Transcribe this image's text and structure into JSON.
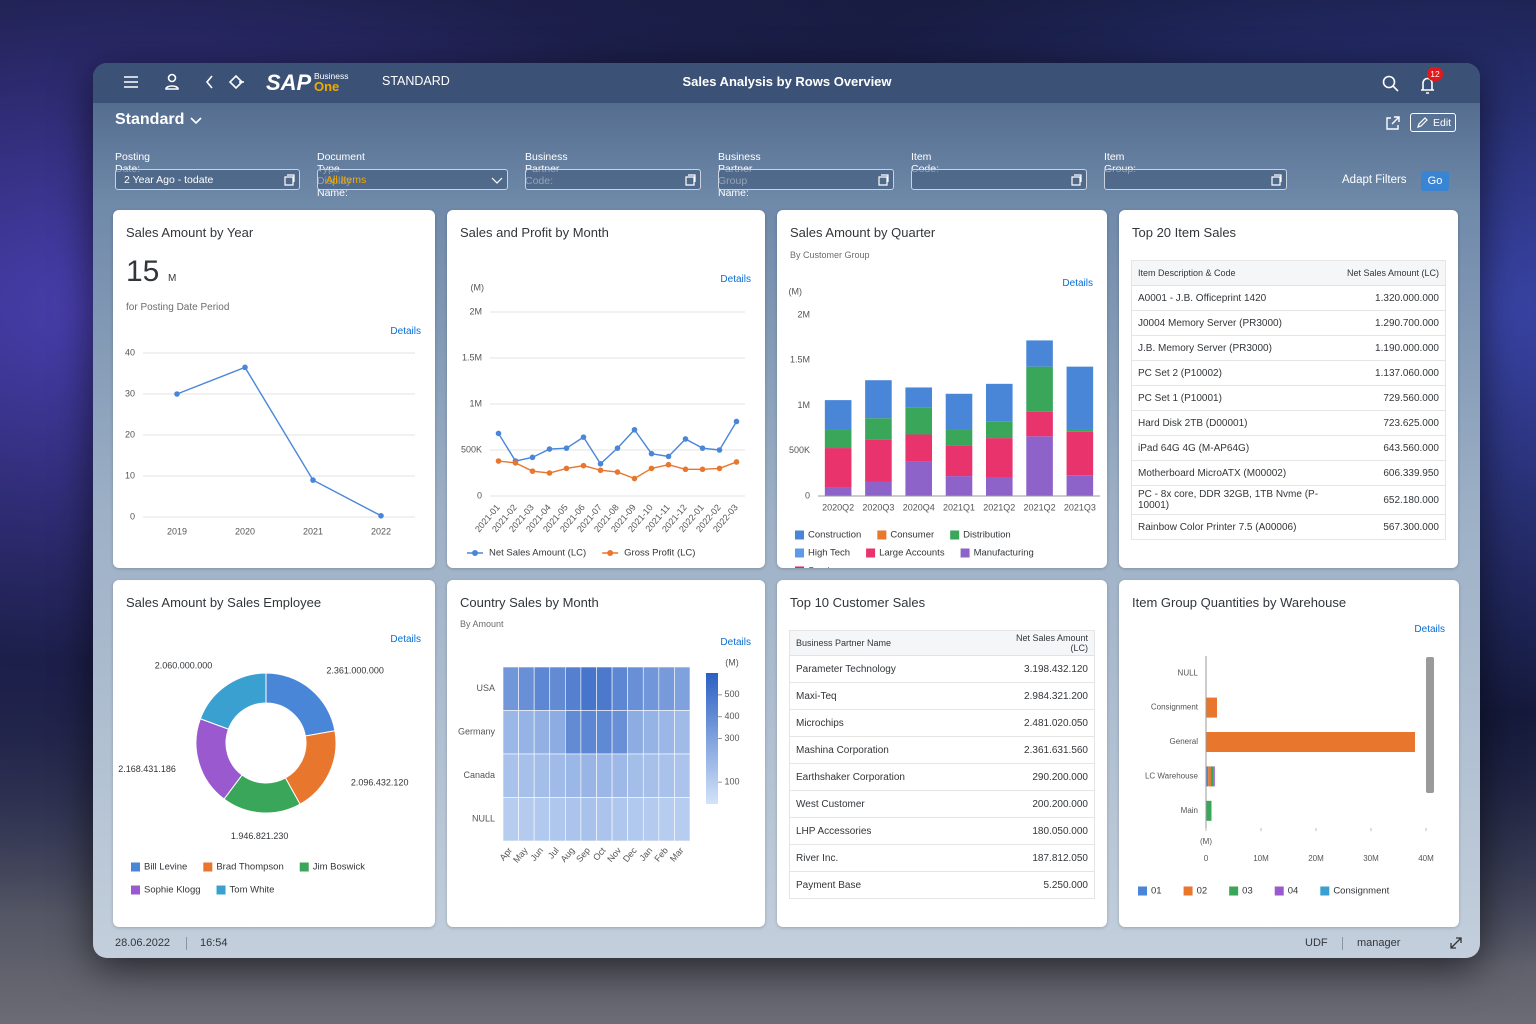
{
  "header": {
    "logo": "SAP",
    "logo_sup": "Business",
    "logo_sub": "One",
    "space": "STANDARD",
    "title": "Sales Analysis by Rows Overview",
    "notifications": 12
  },
  "toolbar": {
    "view": "Standard",
    "edit": "Edit"
  },
  "filters": {
    "fields": [
      {
        "label": "Posting Date:",
        "value": "2 Year Ago - todate"
      },
      {
        "label": "Document Type Display Name:",
        "value": "All Items"
      },
      {
        "label": "Business Partner Code:"
      },
      {
        "label": "Business Partner Group Name:"
      },
      {
        "label": "Item Code:"
      },
      {
        "label": "Item Group:"
      }
    ],
    "adapt": "Adapt Filters",
    "go": "Go"
  },
  "cards": [
    {
      "title": "Sales Amount by Year",
      "kpi": 15,
      "kpi_unit": "M",
      "kpi_caption": "for Posting Date Period",
      "details": "Details",
      "chart": {
        "type": "line",
        "categories": [
          "2019",
          "2020",
          "2021",
          "2022"
        ],
        "values": [
          30,
          36.5,
          9,
          0.3
        ],
        "color": "#4a86d8",
        "ylim": [
          0,
          40
        ],
        "yticks": [
          0,
          10,
          20,
          30,
          40
        ],
        "grid": true
      }
    },
    {
      "title": "Sales and Profit by Month",
      "details": "Details",
      "chart": {
        "type": "line",
        "unit": "(M)",
        "categories": [
          "2021-01",
          "2021-02",
          "2021-03",
          "2021-04",
          "2021-05",
          "2021-06",
          "2021-07",
          "2021-08",
          "2021-09",
          "2021-10",
          "2021-11",
          "2021-12",
          "2022-01",
          "2022-02",
          "2022-03"
        ],
        "series": [
          {
            "name": "Net Sales Amount (LC)",
            "color": "#4a86d8",
            "values": [
              680000,
              380000,
              420000,
              510000,
              520000,
              640000,
              350000,
              520000,
              720000,
              460000,
              430000,
              620000,
              520000,
              500000,
              810000
            ]
          },
          {
            "name": "Gross Profit (LC)",
            "color": "#e8762d",
            "values": [
              380000,
              360000,
              270000,
              250000,
              300000,
              330000,
              280000,
              260000,
              190000,
              300000,
              340000,
              290000,
              290000,
              300000,
              370000
            ]
          }
        ],
        "ylim": [
          0,
          2000000
        ],
        "yticks": [
          0,
          {
            "value": 500000,
            "label": "500K"
          },
          {
            "value": 1000000,
            "label": "1M"
          },
          {
            "value": 1500000,
            "label": "1.5M"
          },
          {
            "value": 2000000,
            "label": "2M"
          }
        ],
        "grid": true
      }
    },
    {
      "title": "Sales Amount by Quarter",
      "subtitle": "By Customer Group",
      "details": "Details",
      "chart": {
        "type": "stacked-bar",
        "unit": "(M)",
        "categories": [
          "2020Q2",
          "2020Q3",
          "2020Q4",
          "2021Q1",
          "2021Q2",
          "2021Q2",
          "2021Q3"
        ],
        "series": [
          {
            "name": "Construction",
            "color": "#4a86d8",
            "values": [
              330000,
              420000,
              220000,
              400000,
              420000,
              290000,
              700000
            ]
          },
          {
            "name": "Consumer",
            "color": "#e8762d",
            "values": [
              0,
              0,
              0,
              0,
              0,
              0,
              0
            ]
          },
          {
            "name": "Distribution",
            "color": "#3aa65a",
            "values": [
              200000,
              240000,
              300000,
              170000,
              180000,
              500000,
              20000
            ]
          },
          {
            "name": "High Tech",
            "color": "#5b9be8",
            "values": [
              0,
              0,
              0,
              0,
              0,
              0,
              0
            ]
          },
          {
            "name": "Large Accounts",
            "color": "#e8336d",
            "values": [
              440000,
              460000,
              300000,
              340000,
              440000,
              270000,
              480000
            ]
          },
          {
            "name": "Manufacturing",
            "color": "#8e63c9",
            "values": [
              90000,
              160000,
              380000,
              220000,
              200000,
              660000,
              230000
            ]
          },
          {
            "name": "Services",
            "color": "#e91e63",
            "values": [
              0,
              0,
              0,
              0,
              0,
              0,
              0
            ]
          }
        ],
        "ylim": [
          0,
          2200000
        ],
        "yticks": [
          0,
          {
            "value": 500000,
            "label": "500K"
          },
          {
            "value": 1000000,
            "label": "1M"
          },
          {
            "value": 1500000,
            "label": "1.5M"
          },
          {
            "value": 2000000,
            "label": "2M"
          }
        ],
        "grid": false
      }
    },
    {
      "title": "Top 20 Item Sales",
      "table": {
        "columns": [
          "Item Description & Code",
          "Net Sales Amount (LC)"
        ],
        "rows": [
          [
            "A0001 - J.B. Officeprint 1420",
            "1.320.000.000"
          ],
          [
            "J0004 Memory Server (PR3000)",
            "1.290.700.000"
          ],
          [
            "J.B. Memory Server (PR3000)",
            "1.190.000.000"
          ],
          [
            "PC Set 2 (P10002)",
            "1.137.060.000"
          ],
          [
            "PC Set 1 (P10001)",
            "729.560.000"
          ],
          [
            "Hard Disk 2TB (D00001)",
            "723.625.000"
          ],
          [
            "iPad 64G 4G (M-AP64G)",
            "643.560.000"
          ],
          [
            "Motherboard MicroATX (M00002)",
            "606.339.950"
          ],
          [
            "PC - 8x core, DDR 32GB, 1TB Nvme (P-10001)",
            "652.180.000"
          ],
          [
            "Rainbow Color Printer 7.5 (A00006)",
            "567.300.000"
          ]
        ]
      }
    },
    {
      "title": "Sales Amount by Sales Employee",
      "details": "Details",
      "chart": {
        "type": "donut",
        "categories": [
          "Bill Levine",
          "Brad Thompson",
          "Jim Boswick",
          "Sophie Klogg",
          "Tom White"
        ],
        "colors": [
          "#4a86d8",
          "#e8762d",
          "#3aa65a",
          "#9b59d0",
          "#3aa0d0"
        ],
        "values": [
          2361000000,
          2096432120,
          1946821230,
          2168431186,
          2060000000
        ],
        "value_labels": [
          "2.361.000.000",
          "2.096.432.120",
          "1.946.821.230",
          "2.168.431.186",
          "2.060.000.000"
        ]
      }
    },
    {
      "title": "Country Sales by Month",
      "subtitle": "By Amount",
      "details": "Details",
      "chart": {
        "type": "heatmap",
        "unit": "(M)",
        "x": [
          "Apr",
          "May",
          "Jun",
          "Jul",
          "Aug",
          "Sep",
          "Oct",
          "Nov",
          "Dec",
          "Jan",
          "Feb",
          "Mar"
        ],
        "y": [
          "USA",
          "Germany",
          "Canada",
          "NULL"
        ],
        "values": [
          [
            350,
            380,
            420,
            400,
            450,
            500,
            480,
            420,
            380,
            350,
            330,
            300
          ],
          [
            200,
            220,
            230,
            250,
            400,
            420,
            410,
            380,
            250,
            220,
            200,
            180
          ],
          [
            150,
            160,
            170,
            180,
            200,
            210,
            200,
            190,
            170,
            160,
            150,
            140
          ],
          [
            100,
            110,
            120,
            130,
            140,
            150,
            140,
            130,
            120,
            110,
            100,
            100
          ]
        ],
        "zlim": [
          0,
          600
        ],
        "zticks": [
          100,
          300,
          400,
          500
        ],
        "colors": [
          "#d3e3f9",
          "#2b5fc2"
        ]
      }
    },
    {
      "title": "Top 10 Customer Sales",
      "table": {
        "columns": [
          "Business Partner Name",
          "Net Sales Amount (LC)"
        ],
        "rows": [
          [
            "Parameter Technology",
            "3.198.432.120"
          ],
          [
            "Maxi-Teq",
            "2.984.321.200"
          ],
          [
            "Microchips",
            "2.481.020.050"
          ],
          [
            "Mashina Corporation",
            "2.361.631.560"
          ],
          [
            "Earthshaker Corporation",
            "290.200.000"
          ],
          [
            "West Customer",
            "200.200.000"
          ],
          [
            "LHP Accessories",
            "180.050.000"
          ],
          [
            "River Inc.",
            "187.812.050"
          ],
          [
            "Payment Base",
            "5.250.000"
          ]
        ]
      }
    },
    {
      "title": "Item Group Quantities by Warehouse",
      "details": "Details",
      "chart": {
        "type": "hbar-stacked",
        "unit": "(M)",
        "categories": [
          "NULL",
          "Consignment",
          "General",
          "LC Warehouse",
          "Main"
        ],
        "series": [
          {
            "name": "01",
            "color": "#4a86d8",
            "values": [
              0,
              0,
              0,
              400000,
              0
            ]
          },
          {
            "name": "02",
            "color": "#e8762d",
            "values": [
              0,
              2000000,
              38000000,
              500000,
              0
            ]
          },
          {
            "name": "03",
            "color": "#3aa65a",
            "values": [
              0,
              0,
              0,
              500000,
              1000000
            ]
          },
          {
            "name": "04",
            "color": "#9b59d0",
            "values": [
              0,
              0,
              0,
              200000,
              0
            ]
          },
          {
            "name": "Consignment",
            "color": "#3aa0d0",
            "values": [
              0,
              0,
              0,
              0,
              0
            ]
          }
        ],
        "xlim": [
          0,
          40000000
        ],
        "xticks": [
          0,
          {
            "value": 10000000,
            "label": "10M"
          },
          {
            "value": 20000000,
            "label": "20M"
          },
          {
            "value": 30000000,
            "label": "30M"
          },
          {
            "value": 40000000,
            "label": "40M"
          }
        ]
      }
    }
  ],
  "footer": {
    "date": "28.06.2022",
    "time": "16:54",
    "udf": "UDF",
    "user": "manager"
  }
}
